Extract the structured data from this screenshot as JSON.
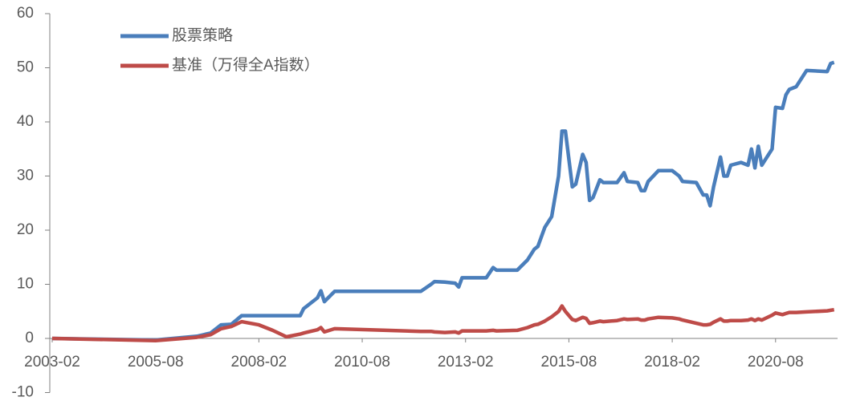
{
  "chart_data": {
    "type": "line",
    "x": [
      "2003-02",
      "2005-08",
      "2006-08",
      "2006-12",
      "2007-03",
      "2007-06",
      "2007-09",
      "2008-02",
      "2008-06",
      "2008-10",
      "2009-02",
      "2009-03",
      "2009-05",
      "2009-07",
      "2009-08",
      "2009-09",
      "2009-12",
      "2012-01",
      "2012-04",
      "2012-05",
      "2012-08",
      "2012-11",
      "2012-12",
      "2013-01",
      "2013-08",
      "2013-10",
      "2013-11",
      "2014-05",
      "2014-08",
      "2014-10",
      "2014-11",
      "2015-01",
      "2015-03",
      "2015-05",
      "2015-06",
      "2015-07",
      "2015-09",
      "2015-10",
      "2015-12",
      "2016-01",
      "2016-02",
      "2016-03",
      "2016-05",
      "2016-06",
      "2016-10",
      "2016-12",
      "2017-01",
      "2017-04",
      "2017-05",
      "2017-06",
      "2017-07",
      "2017-10",
      "2018-02",
      "2018-04",
      "2018-05",
      "2018-09",
      "2018-11",
      "2018-12",
      "2019-01",
      "2019-02",
      "2019-04",
      "2019-05",
      "2019-06",
      "2019-07",
      "2019-10",
      "2019-12",
      "2020-01",
      "2020-02",
      "2020-03",
      "2020-04",
      "2020-07",
      "2020-08",
      "2020-10",
      "2020-11",
      "2020-12",
      "2021-02",
      "2021-05",
      "2021-11",
      "2021-12",
      "2022-01"
    ],
    "series": [
      {
        "name": "股票策略",
        "color": "#4a7ebb",
        "values": [
          0,
          -0.3,
          0.4,
          1.0,
          2.5,
          2.6,
          4.2,
          4.2,
          4.2,
          4.2,
          4.2,
          5.5,
          6.5,
          7.5,
          8.8,
          6.8,
          8.7,
          8.7,
          10,
          10.5,
          10.4,
          10.2,
          9.5,
          11.2,
          11.2,
          13.1,
          12.6,
          12.6,
          14.5,
          16.5,
          17,
          20.5,
          22.5,
          30,
          38.3,
          38.3,
          28,
          28.5,
          34,
          32.5,
          25.5,
          26,
          29.3,
          28.8,
          28.8,
          30.6,
          29,
          28.8,
          27.3,
          27.3,
          29,
          31,
          31,
          30,
          29,
          28.8,
          26.5,
          26.5,
          24.5,
          28,
          33.5,
          30,
          30,
          32,
          32.5,
          32,
          35,
          31.5,
          35.5,
          32,
          35,
          42.7,
          42.5,
          45,
          46,
          46.5,
          49.5,
          49.3,
          50.8,
          51
        ]
      },
      {
        "name": "基准（万得全A指数）",
        "color": "#be4b48",
        "values": [
          0,
          -0.4,
          0.2,
          0.7,
          1.8,
          2.2,
          3.1,
          2.5,
          1.5,
          0.3,
          0.8,
          1.0,
          1.3,
          1.6,
          2.0,
          1.2,
          1.8,
          1.3,
          1.3,
          1.2,
          1.1,
          1.2,
          1.0,
          1.4,
          1.4,
          1.5,
          1.4,
          1.5,
          2.0,
          2.5,
          2.6,
          3.2,
          4.0,
          5.0,
          6.0,
          5.0,
          3.5,
          3.3,
          3.9,
          3.7,
          2.8,
          2.9,
          3.2,
          3.1,
          3.3,
          3.6,
          3.5,
          3.6,
          3.4,
          3.4,
          3.6,
          3.9,
          3.8,
          3.6,
          3.4,
          2.8,
          2.5,
          2.5,
          2.6,
          3.0,
          3.6,
          3.2,
          3.2,
          3.3,
          3.3,
          3.4,
          3.6,
          3.3,
          3.6,
          3.4,
          4.3,
          4.7,
          4.4,
          4.6,
          4.8,
          4.8,
          4.9,
          5.1,
          5.2,
          5.3
        ]
      }
    ],
    "xlim": [
      "2003-02",
      "2022-02"
    ],
    "xticks": [
      "2003-02",
      "2005-08",
      "2008-02",
      "2010-08",
      "2013-02",
      "2015-08",
      "2018-02",
      "2020-08"
    ],
    "ylim": [
      -10,
      60
    ],
    "yticks": [
      -10,
      0,
      10,
      20,
      30,
      40,
      50,
      60
    ],
    "legend": "upper left"
  }
}
